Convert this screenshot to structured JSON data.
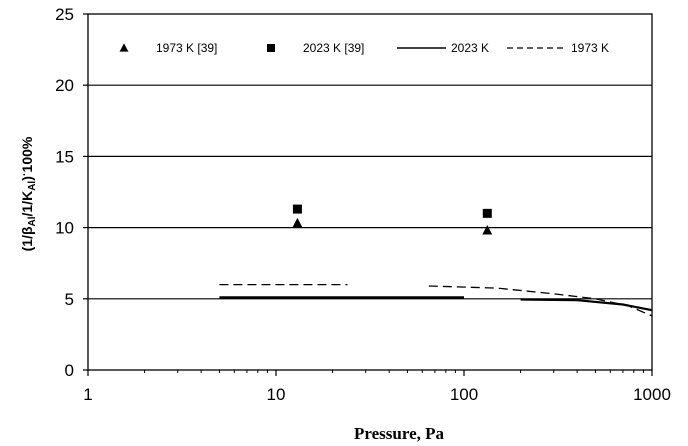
{
  "chart_data": {
    "type": "scatter",
    "xlabel": "Pressure, Pa",
    "ylabel_parts": [
      "(1/β",
      "Al",
      "/1/K",
      "Al",
      ")",
      "·",
      "100%"
    ],
    "xscale": "log",
    "xlim": [
      1,
      1000
    ],
    "ylim": [
      0,
      25
    ],
    "x_ticks": [
      "1",
      "10",
      "100",
      "1000"
    ],
    "y_ticks": [
      "0",
      "5",
      "10",
      "15",
      "20",
      "25"
    ],
    "grid": "horizontal",
    "legend_position": "top",
    "series": [
      {
        "name": "1973 K [39]",
        "kind": "markers",
        "marker": "triangle",
        "points": [
          [
            13,
            10.3
          ],
          [
            133,
            9.8
          ]
        ]
      },
      {
        "name": "2023 K [39]",
        "kind": "markers",
        "marker": "square",
        "points": [
          [
            13,
            11.3
          ],
          [
            133,
            11.0
          ]
        ]
      },
      {
        "name": "2023 K",
        "kind": "line",
        "dash": "solid",
        "segments": [
          [
            [
              5,
              5.1
            ],
            [
              100,
              5.1
            ]
          ],
          [
            [
              200,
              4.95
            ],
            [
              400,
              4.9
            ],
            [
              700,
              4.6
            ],
            [
              1000,
              4.2
            ]
          ]
        ]
      },
      {
        "name": "1973 K",
        "kind": "line",
        "dash": "dashed",
        "segments": [
          [
            [
              5,
              6.0
            ],
            [
              24,
              6.0
            ]
          ],
          [
            [
              65,
              5.9
            ],
            [
              150,
              5.75
            ],
            [
              300,
              5.35
            ],
            [
              500,
              5.0
            ],
            [
              750,
              4.5
            ],
            [
              1000,
              3.8
            ]
          ]
        ]
      }
    ]
  }
}
